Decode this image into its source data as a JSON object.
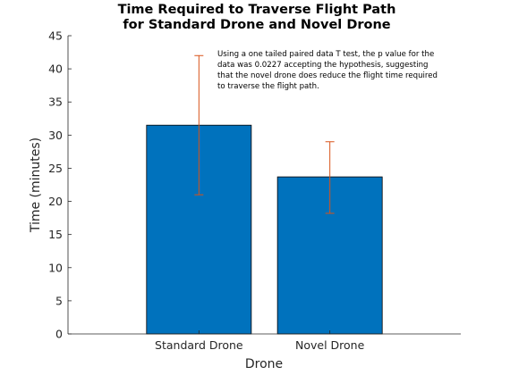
{
  "chart_data": {
    "type": "bar",
    "title": [
      "Time Required to Traverse Flight Path",
      "for Standard Drone and Novel Drone"
    ],
    "xlabel": "Drone",
    "ylabel": "Time (minutes)",
    "categories": [
      "Standard Drone",
      "Novel Drone"
    ],
    "values": [
      31.5,
      23.7
    ],
    "error_bars": [
      {
        "low": 21.0,
        "high": 42.0
      },
      {
        "low": 18.2,
        "high": 29.0
      }
    ],
    "ylim": [
      0,
      45
    ],
    "yticks": [
      0,
      5,
      10,
      15,
      20,
      25,
      30,
      35,
      40,
      45
    ],
    "grid": false,
    "annotation": [
      "Using a one tailed paired data T test, the p value for the",
      "data was 0.0227 accepting the hypothesis, suggesting",
      "that the novel drone does reduce the flight time required",
      "to traverse the flight path."
    ],
    "colors": {
      "bar": "#0072BD",
      "error": "#D95319",
      "axis": "#262626"
    }
  }
}
